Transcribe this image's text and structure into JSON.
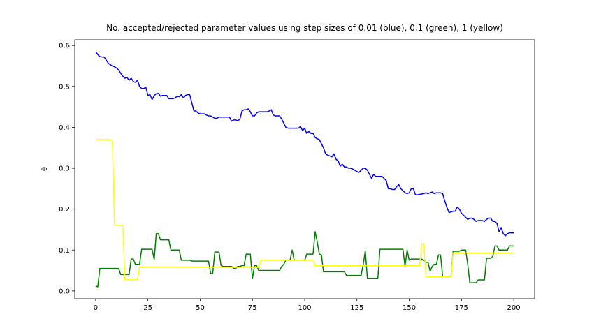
{
  "chart_data": {
    "type": "line",
    "title": "No. accepted/rejected parameter values using step sizes of 0.01 (blue), 0.1 (green), 1 (yellow)",
    "y_label": "θ",
    "xlim": [
      -10,
      210
    ],
    "ylim": [
      -0.019,
      0.614
    ],
    "xticks": [
      0,
      25,
      50,
      75,
      100,
      125,
      150,
      175,
      200
    ],
    "yticks": [
      {
        "value": 0,
        "label": "0.0"
      },
      0.1,
      0.2,
      0.3,
      0.4,
      0.5,
      0.6
    ],
    "grid": false,
    "x": [
      0,
      1,
      2,
      3,
      4,
      5,
      6,
      7,
      8,
      9,
      10,
      11,
      12,
      13,
      14,
      15,
      16,
      17,
      18,
      19,
      20,
      21,
      22,
      23,
      24,
      25,
      26,
      27,
      28,
      29,
      30,
      31,
      32,
      33,
      34,
      35,
      36,
      37,
      38,
      39,
      40,
      41,
      42,
      43,
      44,
      45,
      46,
      47,
      48,
      49,
      50,
      51,
      52,
      53,
      54,
      55,
      56,
      57,
      58,
      59,
      60,
      61,
      62,
      63,
      64,
      65,
      66,
      67,
      68,
      69,
      70,
      71,
      72,
      73,
      74,
      75,
      76,
      77,
      78,
      79,
      80,
      81,
      82,
      83,
      84,
      85,
      86,
      87,
      88,
      89,
      90,
      91,
      92,
      93,
      94,
      95,
      96,
      97,
      98,
      99,
      100,
      101,
      102,
      103,
      104,
      105,
      106,
      107,
      108,
      109,
      110,
      111,
      112,
      113,
      114,
      115,
      116,
      117,
      118,
      119,
      120,
      121,
      122,
      123,
      124,
      125,
      126,
      127,
      128,
      129,
      130,
      131,
      132,
      133,
      134,
      135,
      136,
      137,
      138,
      139,
      140,
      141,
      142,
      143,
      144,
      145,
      146,
      147,
      148,
      149,
      150,
      151,
      152,
      153,
      154,
      155,
      156,
      157,
      158,
      159,
      160,
      161,
      162,
      163,
      164,
      165,
      166,
      167,
      168,
      169,
      170,
      171,
      172,
      173,
      174,
      175,
      176,
      177,
      178,
      179,
      180,
      181,
      182,
      183,
      184,
      185,
      186,
      187,
      188,
      189,
      190,
      191,
      192,
      193,
      194,
      195,
      196,
      197,
      198,
      199,
      200
    ],
    "series": [
      {
        "color": "#0000ff",
        "values": [
          0.585,
          0.578,
          0.573,
          0.572,
          0.572,
          0.565,
          0.557,
          0.553,
          0.55,
          0.548,
          0.545,
          0.54,
          0.532,
          0.525,
          0.52,
          0.522,
          0.515,
          0.52,
          0.512,
          0.51,
          0.515,
          0.5,
          0.495,
          0.495,
          0.498,
          0.478,
          0.48,
          0.468,
          0.478,
          0.482,
          0.483,
          0.476,
          0.478,
          0.478,
          0.478,
          0.47,
          0.47,
          0.47,
          0.472,
          0.476,
          0.475,
          0.48,
          0.472,
          0.478,
          0.48,
          0.48,
          0.46,
          0.44,
          0.44,
          0.435,
          0.433,
          0.433,
          0.433,
          0.43,
          0.428,
          0.428,
          0.425,
          0.422,
          0.422,
          0.425,
          0.425,
          0.425,
          0.425,
          0.425,
          0.425,
          0.415,
          0.418,
          0.418,
          0.416,
          0.42,
          0.44,
          0.443,
          0.443,
          0.445,
          0.438,
          0.428,
          0.428,
          0.435,
          0.438,
          0.438,
          0.438,
          0.438,
          0.438,
          0.44,
          0.443,
          0.43,
          0.428,
          0.428,
          0.428,
          0.42,
          0.41,
          0.4,
          0.398,
          0.398,
          0.398,
          0.398,
          0.398,
          0.398,
          0.402,
          0.392,
          0.398,
          0.385,
          0.39,
          0.385,
          0.385,
          0.375,
          0.372,
          0.37,
          0.36,
          0.35,
          0.335,
          0.332,
          0.33,
          0.328,
          0.335,
          0.322,
          0.318,
          0.305,
          0.31,
          0.303,
          0.303,
          0.3,
          0.3,
          0.298,
          0.295,
          0.292,
          0.29,
          0.295,
          0.3,
          0.3,
          0.295,
          0.285,
          0.275,
          0.285,
          0.28,
          0.28,
          0.28,
          0.28,
          0.275,
          0.27,
          0.25,
          0.25,
          0.248,
          0.248,
          0.255,
          0.26,
          0.25,
          0.245,
          0.24,
          0.238,
          0.24,
          0.25,
          0.25,
          0.235,
          0.235,
          0.236,
          0.237,
          0.238,
          0.24,
          0.238,
          0.24,
          0.242,
          0.238,
          0.24,
          0.24,
          0.24,
          0.238,
          0.22,
          0.205,
          0.192,
          0.193,
          0.195,
          0.195,
          0.205,
          0.2,
          0.19,
          0.185,
          0.18,
          0.175,
          0.178,
          0.178,
          0.175,
          0.17,
          0.172,
          0.172,
          0.172,
          0.17,
          0.175,
          0.178,
          0.178,
          0.17,
          0.17,
          0.165,
          0.145,
          0.155,
          0.14,
          0.135,
          0.14,
          0.142,
          0.142,
          0.142
        ]
      },
      {
        "color": "#008000",
        "values": [
          0.012,
          0.01,
          0.055,
          0.055,
          0.055,
          0.055,
          0.055,
          0.055,
          0.055,
          0.055,
          0.055,
          0.055,
          0.04,
          0.04,
          0.04,
          0.04,
          0.04,
          0.078,
          0.078,
          0.065,
          0.065,
          0.065,
          0.102,
          0.102,
          0.102,
          0.102,
          0.102,
          0.102,
          0.077,
          0.14,
          0.14,
          0.125,
          0.125,
          0.125,
          0.125,
          0.125,
          0.1,
          0.1,
          0.1,
          0.1,
          0.1,
          0.075,
          0.075,
          0.075,
          0.075,
          0.075,
          0.073,
          0.073,
          0.073,
          0.073,
          0.073,
          0.073,
          0.073,
          0.073,
          0.073,
          0.043,
          0.043,
          0.095,
          0.095,
          0.095,
          0.062,
          0.06,
          0.06,
          0.06,
          0.06,
          0.06,
          0.055,
          0.055,
          0.06,
          0.06,
          0.062,
          0.062,
          0.09,
          0.09,
          0.09,
          0.03,
          0.062,
          0.062,
          0.05,
          0.05,
          0.05,
          0.05,
          0.05,
          0.05,
          0.05,
          0.05,
          0.05,
          0.05,
          0.05,
          0.06,
          0.065,
          0.075,
          0.075,
          0.075,
          0.1,
          0.075,
          0.075,
          0.075,
          0.075,
          0.075,
          0.075,
          0.09,
          0.09,
          0.09,
          0.09,
          0.145,
          0.12,
          0.09,
          0.088,
          0.047,
          0.047,
          0.047,
          0.047,
          0.047,
          0.047,
          0.047,
          0.047,
          0.047,
          0.047,
          0.047,
          0.038,
          0.038,
          0.038,
          0.038,
          0.038,
          0.038,
          0.038,
          0.038,
          0.065,
          0.098,
          0.03,
          0.03,
          0.03,
          0.03,
          0.03,
          0.03,
          0.102,
          0.102,
          0.102,
          0.102,
          0.102,
          0.102,
          0.102,
          0.102,
          0.102,
          0.102,
          0.102,
          0.102,
          0.06,
          0.1,
          0.075,
          0.078,
          0.078,
          0.078,
          0.078,
          0.078,
          0.078,
          0.075,
          0.07,
          0.07,
          0.048,
          0.06,
          0.065,
          0.065,
          0.088,
          0.088,
          0.035,
          0.035,
          0.035,
          0.035,
          0.035,
          0.097,
          0.097,
          0.097,
          0.097,
          0.1,
          0.1,
          0.1,
          0.065,
          0.02,
          0.02,
          0.02,
          0.02,
          0.027,
          0.027,
          0.027,
          0.027,
          0.08,
          0.08,
          0.08,
          0.085,
          0.11,
          0.11,
          0.1,
          0.1,
          0.1,
          0.1,
          0.1,
          0.11,
          0.11,
          0.11
        ]
      },
      {
        "color": "#ffff00",
        "values": [
          0.37,
          0.37,
          0.37,
          0.37,
          0.37,
          0.37,
          0.37,
          0.37,
          0.365,
          0.16,
          0.16,
          0.16,
          0.16,
          0.16,
          0.027,
          0.027,
          0.027,
          0.027,
          0.027,
          0.027,
          0.027,
          0.058,
          0.058,
          0.058,
          0.058,
          0.058,
          0.058,
          0.058,
          0.058,
          0.058,
          0.058,
          0.058,
          0.058,
          0.058,
          0.058,
          0.058,
          0.058,
          0.058,
          0.058,
          0.058,
          0.058,
          0.058,
          0.058,
          0.058,
          0.058,
          0.058,
          0.058,
          0.058,
          0.058,
          0.058,
          0.058,
          0.058,
          0.058,
          0.058,
          0.058,
          0.058,
          0.058,
          0.058,
          0.058,
          0.058,
          0.058,
          0.058,
          0.058,
          0.058,
          0.058,
          0.058,
          0.058,
          0.058,
          0.058,
          0.058,
          0.058,
          0.058,
          0.058,
          0.058,
          0.058,
          0.058,
          0.058,
          0.058,
          0.058,
          0.075,
          0.075,
          0.075,
          0.075,
          0.075,
          0.075,
          0.075,
          0.075,
          0.075,
          0.075,
          0.075,
          0.075,
          0.075,
          0.075,
          0.075,
          0.075,
          0.075,
          0.075,
          0.075,
          0.075,
          0.075,
          0.075,
          0.075,
          0.075,
          0.075,
          0.075,
          0.062,
          0.062,
          0.062,
          0.062,
          0.062,
          0.062,
          0.062,
          0.062,
          0.062,
          0.062,
          0.062,
          0.062,
          0.062,
          0.062,
          0.062,
          0.062,
          0.062,
          0.062,
          0.062,
          0.062,
          0.062,
          0.062,
          0.062,
          0.062,
          0.062,
          0.062,
          0.062,
          0.062,
          0.062,
          0.062,
          0.062,
          0.062,
          0.062,
          0.062,
          0.062,
          0.062,
          0.062,
          0.062,
          0.062,
          0.062,
          0.062,
          0.062,
          0.062,
          0.062,
          0.062,
          0.062,
          0.062,
          0.062,
          0.062,
          0.062,
          0.062,
          0.115,
          0.115,
          0.035,
          0.035,
          0.035,
          0.035,
          0.035,
          0.035,
          0.035,
          0.035,
          0.035,
          0.035,
          0.035,
          0.035,
          0.035,
          0.093,
          0.093,
          0.093,
          0.093,
          0.093,
          0.093,
          0.093,
          0.093,
          0.093,
          0.093,
          0.093,
          0.093,
          0.093,
          0.093,
          0.093,
          0.093,
          0.093,
          0.093,
          0.093,
          0.093,
          0.093,
          0.093,
          0.093,
          0.093,
          0.093,
          0.093,
          0.093,
          0.093,
          0.093,
          0.093
        ]
      }
    ]
  }
}
